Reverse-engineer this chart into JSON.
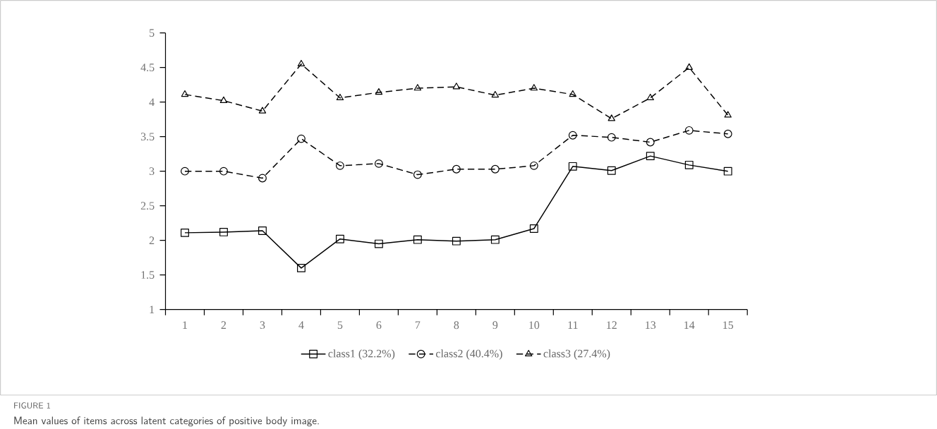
{
  "chart_data": {
    "type": "line",
    "categories": [
      "1",
      "2",
      "3",
      "4",
      "5",
      "6",
      "7",
      "8",
      "9",
      "10",
      "11",
      "12",
      "13",
      "14",
      "15"
    ],
    "series": [
      {
        "name": "class1 (32.2%)",
        "color": "#000000",
        "marker": "square",
        "line_style": "solid",
        "values": [
          2.11,
          2.12,
          2.14,
          1.6,
          2.02,
          1.95,
          2.01,
          1.99,
          2.01,
          2.17,
          3.07,
          3.01,
          3.22,
          3.09,
          3.0
        ]
      },
      {
        "name": "class2 (40.4%)",
        "color": "#000000",
        "marker": "circle",
        "line_style": "dashed",
        "values": [
          3.0,
          3.0,
          2.9,
          3.47,
          3.08,
          3.11,
          2.95,
          3.03,
          3.03,
          3.08,
          3.52,
          3.49,
          3.42,
          3.59,
          3.54
        ]
      },
      {
        "name": "class3 (27.4%)",
        "color": "#000000",
        "marker": "triangle",
        "line_style": "dashed",
        "values": [
          4.11,
          4.02,
          3.87,
          4.55,
          4.06,
          4.14,
          4.2,
          4.22,
          4.1,
          4.2,
          4.11,
          3.76,
          4.06,
          4.5,
          3.81
        ]
      }
    ],
    "ylim": [
      1,
      5
    ],
    "yticks": [
      1,
      1.5,
      2,
      2.5,
      3,
      3.5,
      4,
      4.5,
      5
    ],
    "grid": false,
    "legend": "bottom",
    "annotations": [
      "FIGURE 1",
      "Mean values of items across latent categories of positive body image."
    ]
  }
}
